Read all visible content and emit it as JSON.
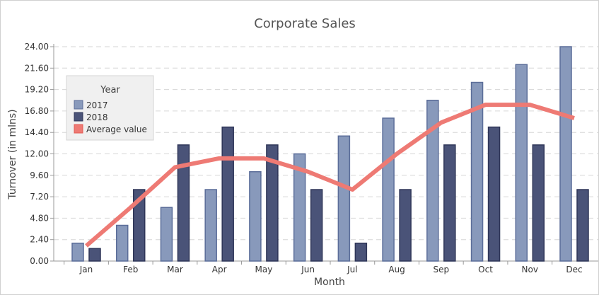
{
  "chart_data": {
    "type": "bar",
    "title": "Corporate Sales",
    "xlabel": "Month",
    "ylabel": "Turnover (in mlns)",
    "ylim": [
      0,
      24
    ],
    "yticks": [
      "0.00",
      "2.40",
      "4.80",
      "7.20",
      "9.60",
      "12.00",
      "14.40",
      "16.80",
      "19.20",
      "21.60",
      "24.00"
    ],
    "categories": [
      "Jan",
      "Feb",
      "Mar",
      "Apr",
      "May",
      "Jun",
      "Jul",
      "Aug",
      "Sep",
      "Oct",
      "Nov",
      "Dec"
    ],
    "grid": true,
    "legend_placement": "left",
    "legend_title": "Year",
    "series": [
      {
        "name": "2017",
        "kind": "bar",
        "color": "#8899bb",
        "stroke": "#5b6d99",
        "values": [
          2,
          4,
          6,
          8,
          10,
          12,
          14,
          16,
          18,
          20,
          22,
          24
        ]
      },
      {
        "name": "2018",
        "kind": "bar",
        "color": "#4a5378",
        "stroke": "#2f3658",
        "values": [
          1.4,
          8,
          13,
          15,
          13,
          8,
          2,
          8,
          13,
          15,
          13,
          8
        ]
      },
      {
        "name": "Average value",
        "kind": "line",
        "color": "#ee7a74",
        "values": [
          1.7,
          6,
          10.5,
          11.5,
          11.5,
          10,
          8,
          12,
          15.5,
          17.5,
          17.5,
          16
        ]
      }
    ]
  }
}
